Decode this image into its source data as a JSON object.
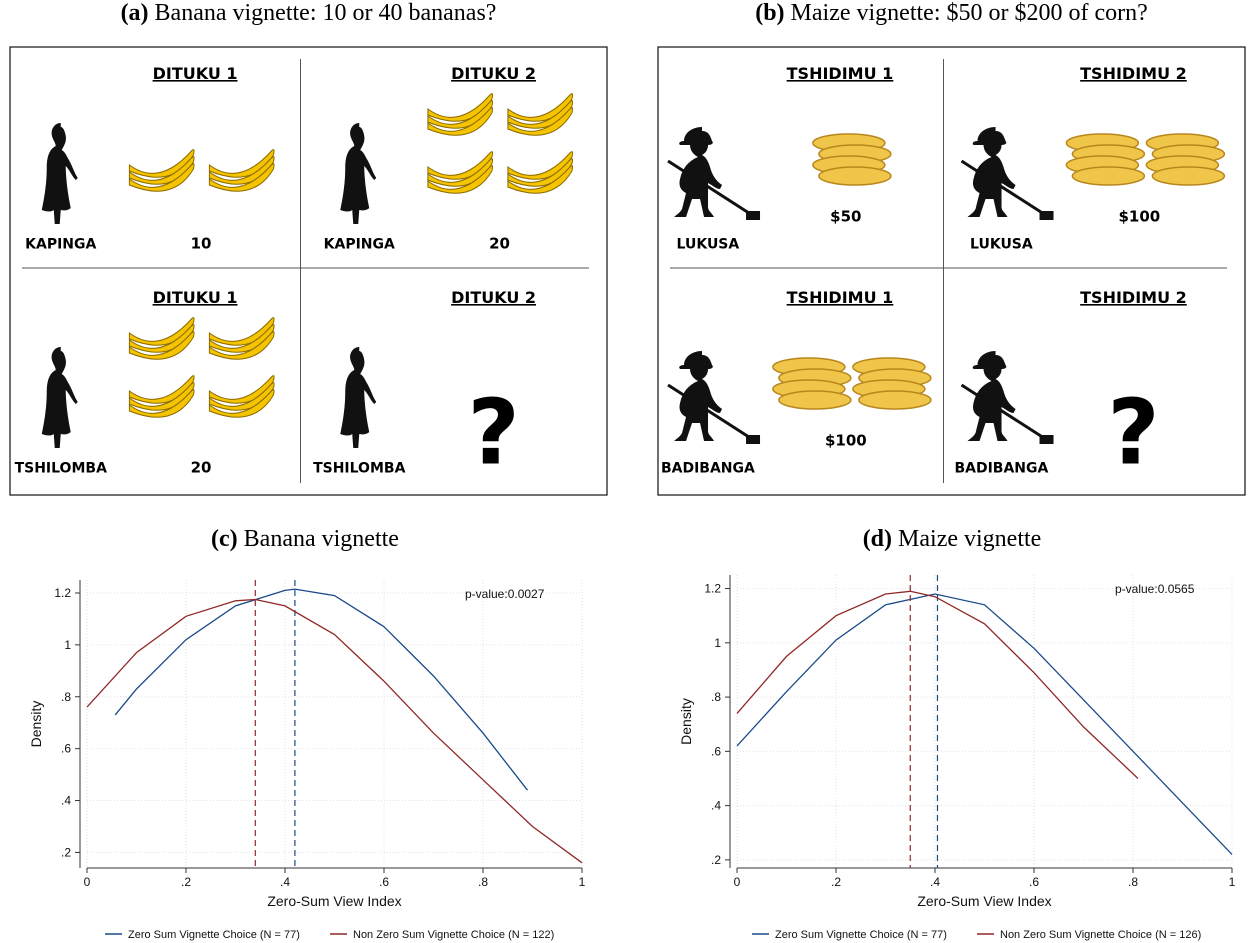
{
  "vignettes": [
    {
      "title_label": "(a)",
      "title": "Banana vignette: 10 or 40 bananas?",
      "cells": [
        {
          "heading": "DITUKU 1",
          "person": "KAPINGA",
          "amount": "10"
        },
        {
          "heading": "DITUKU 2",
          "person": "KAPINGA",
          "amount": "20"
        },
        {
          "heading": "DITUKU 1",
          "person": "TSHILOMBA",
          "amount": "20"
        },
        {
          "heading": "DITUKU 2",
          "person": "TSHILOMBA",
          "amount": "?"
        }
      ]
    },
    {
      "title_label": "(b)",
      "title": "Maize vignette: $50 or $200 of corn?",
      "cells": [
        {
          "heading": "TSHIDIMU 1",
          "person": "LUKUSA",
          "amount": "$50"
        },
        {
          "heading": "TSHIDIMU 2",
          "person": "LUKUSA",
          "amount": "$100"
        },
        {
          "heading": "TSHIDIMU 1",
          "person": "BADIBANGA",
          "amount": "$100"
        },
        {
          "heading": "TSHIDIMU 2",
          "person": "BADIBANGA",
          "amount": "?"
        }
      ]
    }
  ],
  "chart_data": [
    {
      "type": "line",
      "title_label": "(c)",
      "title": "Banana vignette",
      "x_label": "Zero-Sum View Index",
      "y_label": "Density",
      "annotation": "p-value:0.0027",
      "xlim": [
        0,
        1
      ],
      "ylim": [
        0.14,
        1.25
      ],
      "grid": true,
      "xticks": [
        0,
        {
          "value": 0.2,
          "label": ".2"
        },
        {
          "value": 0.4,
          "label": ".4"
        },
        {
          "value": 0.6,
          "label": ".6"
        },
        {
          "value": 0.8,
          "label": ".8"
        },
        1
      ],
      "yticks": [
        {
          "value": 0.2,
          "label": ".2"
        },
        {
          "value": 0.4,
          "label": ".4"
        },
        {
          "value": 0.6,
          "label": ".6"
        },
        {
          "value": 0.8,
          "label": ".8"
        },
        1,
        1.2
      ],
      "series": [
        {
          "name": "Zero Sum Vignette Choice (N = 77)",
          "color": "#1a4a8a",
          "mean": 0.42,
          "x": [
            0.057,
            0.1,
            0.2,
            0.3,
            0.4,
            0.42,
            0.5,
            0.6,
            0.7,
            0.8,
            0.89
          ],
          "values": [
            0.73,
            0.83,
            1.02,
            1.15,
            1.21,
            1.215,
            1.19,
            1.07,
            0.88,
            0.66,
            0.44
          ]
        },
        {
          "name": "Non Zero Sum Vignette Choice (N = 122)",
          "color": "#902828",
          "mean": 0.34,
          "x": [
            0,
            0.1,
            0.2,
            0.3,
            0.34,
            0.4,
            0.5,
            0.6,
            0.7,
            0.8,
            0.9,
            1
          ],
          "values": [
            0.76,
            0.97,
            1.11,
            1.17,
            1.175,
            1.15,
            1.04,
            0.86,
            0.66,
            0.48,
            0.3,
            0.16
          ]
        }
      ]
    },
    {
      "type": "line",
      "title_label": "(d)",
      "title": "Maize vignette",
      "x_label": "Zero-Sum View Index",
      "y_label": "Density",
      "annotation": "p-value:0.0565",
      "xlim": [
        0,
        1
      ],
      "ylim": [
        0.17,
        1.25
      ],
      "grid": true,
      "xticks": [
        0,
        {
          "value": 0.2,
          "label": ".2"
        },
        {
          "value": 0.4,
          "label": ".4"
        },
        {
          "value": 0.6,
          "label": ".6"
        },
        {
          "value": 0.8,
          "label": ".8"
        },
        1
      ],
      "yticks": [
        {
          "value": 0.2,
          "label": ".2"
        },
        {
          "value": 0.4,
          "label": ".4"
        },
        {
          "value": 0.6,
          "label": ".6"
        },
        {
          "value": 0.8,
          "label": ".8"
        },
        1,
        1.2
      ],
      "series": [
        {
          "name": "Zero Sum Vignette Choice (N = 77)",
          "color": "#1a4a8a",
          "mean": 0.405,
          "x": [
            0,
            0.1,
            0.2,
            0.3,
            0.4,
            0.5,
            0.6,
            0.7,
            0.8,
            0.9,
            1
          ],
          "values": [
            0.62,
            0.82,
            1.01,
            1.14,
            1.18,
            1.14,
            0.98,
            0.79,
            0.6,
            0.41,
            0.22
          ]
        },
        {
          "name": "Non Zero Sum Vignette Choice (N = 126)",
          "color": "#902828",
          "mean": 0.35,
          "x": [
            0,
            0.1,
            0.2,
            0.3,
            0.35,
            0.4,
            0.5,
            0.6,
            0.7,
            0.81
          ],
          "values": [
            0.74,
            0.95,
            1.1,
            1.18,
            1.19,
            1.17,
            1.07,
            0.89,
            0.69,
            0.5
          ]
        }
      ]
    }
  ]
}
